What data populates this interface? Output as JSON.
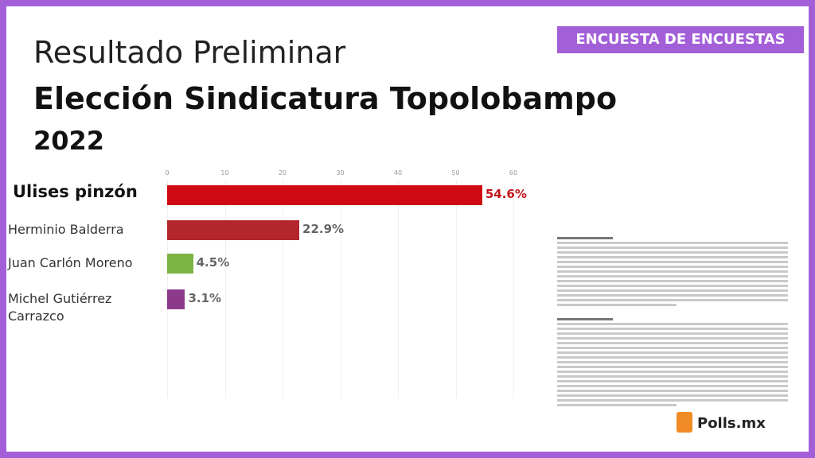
{
  "chart_data": {
    "type": "bar",
    "orientation": "horizontal",
    "title": "Resultado Preliminar",
    "subtitle": "Elección Sindicatura Topolobampo",
    "year": "2022",
    "badge": "ENCUESTA DE ENCUESTAS",
    "categories": [
      "Ulises pinzón",
      "Herminio Balderra",
      "Juan Carlón Moreno",
      "Michel Gutiérrez Carrazco"
    ],
    "values": [
      54.6,
      22.9,
      4.5,
      3.1
    ],
    "value_labels": [
      "54.6%",
      "22.9%",
      "4.5%",
      "3.1%"
    ],
    "colors": [
      "#d00a12",
      "#b3262d",
      "#7cb342",
      "#8e3a8c"
    ],
    "xlim": [
      0,
      60
    ],
    "xticks": [
      0,
      10,
      20,
      30,
      40,
      50,
      60
    ],
    "grid": true,
    "logo": "Polls.mx"
  }
}
